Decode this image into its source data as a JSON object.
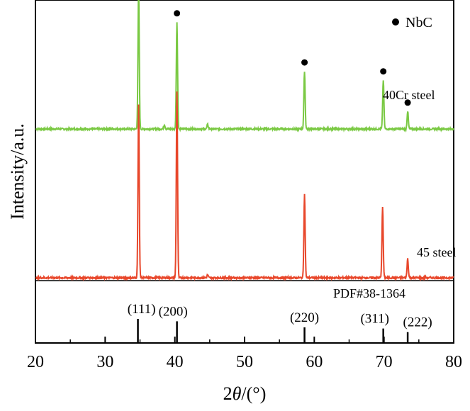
{
  "chart_data": {
    "type": "line",
    "xlabel_prefix": "2",
    "xlabel_var": "θ",
    "xlabel_suffix": "/(°)",
    "ylabel": "Intensity/a.u.",
    "xlim": [
      20,
      80
    ],
    "x_ticks": [
      20,
      30,
      40,
      50,
      60,
      70,
      80
    ],
    "x_tick_labels": [
      "20",
      "30",
      "40",
      "50",
      "60",
      "70",
      "80"
    ],
    "grid": false,
    "legend": {
      "label": "NbC",
      "marker": "filled-circle",
      "placement": "top-right"
    },
    "series": [
      {
        "name": "40Cr steel",
        "color": "#7ac943",
        "baseline": 1.0,
        "peaks": [
          {
            "x": 34.8,
            "h": 0.95
          },
          {
            "x": 38.5,
            "h": 0.03
          },
          {
            "x": 40.3,
            "h": 0.72
          },
          {
            "x": 44.7,
            "h": 0.03
          },
          {
            "x": 58.6,
            "h": 0.39
          },
          {
            "x": 69.9,
            "h": 0.33
          },
          {
            "x": 73.4,
            "h": 0.12
          }
        ],
        "nbc_markers_x": [
          34.8,
          40.3,
          58.6,
          69.9,
          73.4
        ]
      },
      {
        "name": "45 steel",
        "color": "#e8472b",
        "baseline": 0.0,
        "peaks": [
          {
            "x": 34.8,
            "h": 1.16
          },
          {
            "x": 40.3,
            "h": 1.25
          },
          {
            "x": 44.7,
            "h": 0.02
          },
          {
            "x": 58.6,
            "h": 0.56
          },
          {
            "x": 69.8,
            "h": 0.48
          },
          {
            "x": 73.4,
            "h": 0.13
          }
        ]
      }
    ],
    "reference": {
      "label": "PDF#38-1364",
      "lines": [
        {
          "x": 34.7,
          "label": "(111)",
          "h": 1.0
        },
        {
          "x": 40.3,
          "label": "(200)",
          "h": 0.9
        },
        {
          "x": 58.6,
          "label": "(220)",
          "h": 0.65
        },
        {
          "x": 69.9,
          "label": "(311)",
          "h": 0.6
        },
        {
          "x": 73.4,
          "label": "(222)",
          "h": 0.45
        }
      ]
    }
  }
}
